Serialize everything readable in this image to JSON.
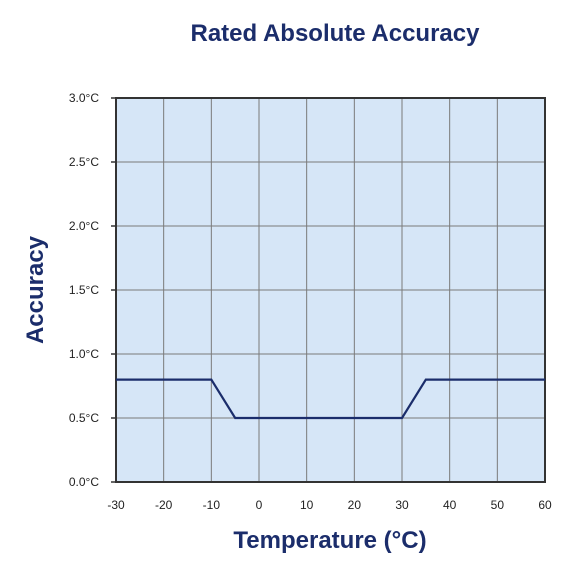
{
  "chart_data": {
    "type": "line",
    "title": "Rated Absolute Accuracy",
    "xlabel": "Temperature (°C)",
    "ylabel": "Accuracy",
    "xlim": [
      -30,
      60
    ],
    "ylim": [
      0,
      3
    ],
    "x_ticks": [
      -30,
      -20,
      -10,
      0,
      10,
      20,
      30,
      40,
      50,
      60
    ],
    "x_tick_labels": [
      "-30",
      "-20",
      "-10",
      "0",
      "10",
      "20",
      "30",
      "40",
      "50",
      "60"
    ],
    "y_ticks": [
      0,
      0.5,
      1,
      1.5,
      2,
      2.5,
      3
    ],
    "y_tick_labels": [
      "0.0°C",
      "0.5°C",
      "1.0°C",
      "1.5°C",
      "2.0°C",
      "2.5°C",
      "3.0°C"
    ],
    "grid": true,
    "series": [
      {
        "x": [
          -30,
          -10,
          -5,
          30,
          35,
          60
        ],
        "y": [
          0.8,
          0.8,
          0.5,
          0.5,
          0.8,
          0.8
        ]
      }
    ],
    "colors": {
      "plot_background": "#d6e6f7",
      "line": "#1b2d6b",
      "grid": "#7a7a7a",
      "title": "#1b2d6b"
    }
  }
}
